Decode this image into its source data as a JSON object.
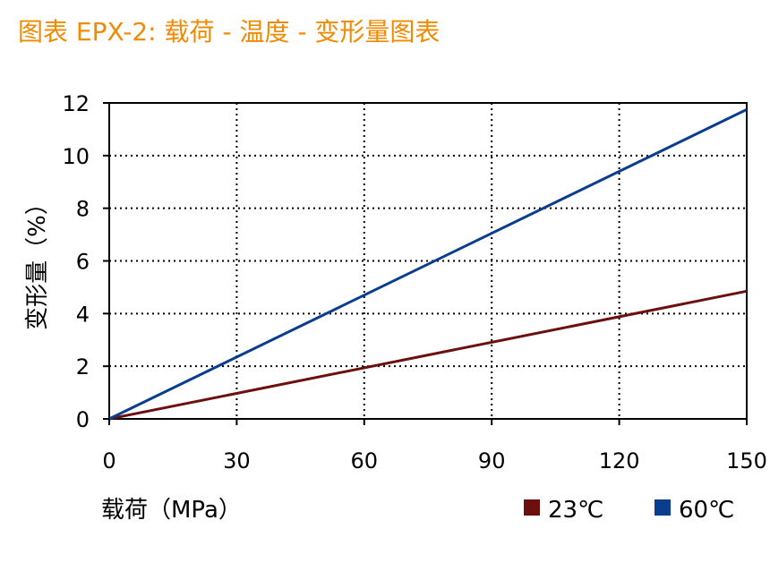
{
  "title": "图表 EPX-2: 载荷 - 温度 - 变形量图表",
  "chart_data": {
    "type": "line",
    "title": "图表 EPX-2: 载荷 - 温度 - 变形量图表",
    "xlabel": "载荷（MPa）",
    "ylabel": "变形量（%）",
    "xlim": [
      0,
      150
    ],
    "ylim": [
      0,
      12
    ],
    "xticks": [
      0,
      30,
      60,
      90,
      120,
      150
    ],
    "yticks": [
      0,
      2,
      4,
      6,
      8,
      10,
      12
    ],
    "grid": true,
    "legend_position": "bottom-right",
    "series": [
      {
        "name": "23℃",
        "color": "#6b0f0f",
        "x": [
          0,
          150
        ],
        "y": [
          0,
          4.85
        ]
      },
      {
        "name": "60℃",
        "color": "#0b3d8f",
        "x": [
          0,
          150
        ],
        "y": [
          0,
          11.75
        ]
      }
    ]
  }
}
